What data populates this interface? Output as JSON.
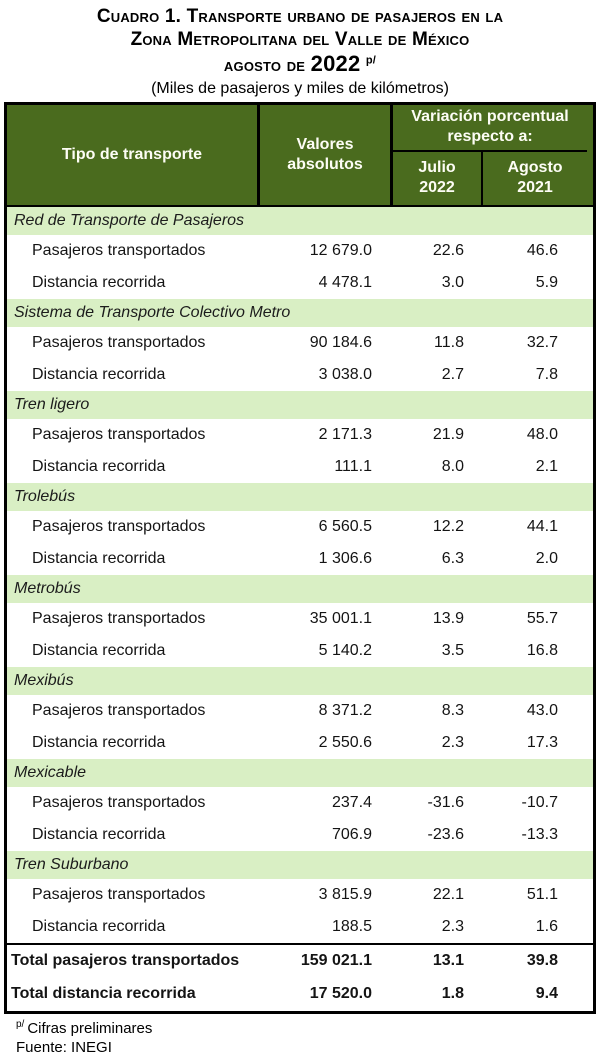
{
  "title": {
    "line1": "Cuadro 1. Transporte urbano de pasajeros en la",
    "line2": "Zona Metropolitana del Valle de México",
    "line3_prefix": "agosto de",
    "year": "2022",
    "footnote_mark": "p/",
    "subtitle": "(Miles de pasajeros y miles de kilómetros)"
  },
  "table": {
    "headers": {
      "col_type": "Tipo de transporte",
      "col_values": "Valores absolutos",
      "col_variation_group": "Variación porcentual respecto a:",
      "col_jul": "Julio\n2022",
      "col_aug": "Agosto\n2021"
    },
    "row_labels": {
      "passengers": "Pasajeros transportados",
      "distance": "Distancia recorrida"
    },
    "sections": [
      {
        "name": "Red de Transporte de Pasajeros",
        "passengers": {
          "abs": "12 679.0",
          "jul": "22.6",
          "aug": "46.6"
        },
        "distance": {
          "abs": "4 478.1",
          "jul": "3.0",
          "aug": "5.9"
        }
      },
      {
        "name": "Sistema de Transporte Colectivo Metro",
        "passengers": {
          "abs": "90 184.6",
          "jul": "11.8",
          "aug": "32.7"
        },
        "distance": {
          "abs": "3 038.0",
          "jul": "2.7",
          "aug": "7.8"
        }
      },
      {
        "name": "Tren ligero",
        "passengers": {
          "abs": "2 171.3",
          "jul": "21.9",
          "aug": "48.0"
        },
        "distance": {
          "abs": "111.1",
          "jul": "8.0",
          "aug": "2.1"
        }
      },
      {
        "name": "Trolebús",
        "passengers": {
          "abs": "6 560.5",
          "jul": "12.2",
          "aug": "44.1"
        },
        "distance": {
          "abs": "1 306.6",
          "jul": "6.3",
          "aug": "2.0"
        }
      },
      {
        "name": "Metrobús",
        "passengers": {
          "abs": "35 001.1",
          "jul": "13.9",
          "aug": "55.7"
        },
        "distance": {
          "abs": "5 140.2",
          "jul": "3.5",
          "aug": "16.8"
        }
      },
      {
        "name": "Mexibús",
        "passengers": {
          "abs": "8 371.2",
          "jul": "8.3",
          "aug": "43.0"
        },
        "distance": {
          "abs": "2 550.6",
          "jul": "2.3",
          "aug": "17.3"
        }
      },
      {
        "name": "Mexicable",
        "passengers": {
          "abs": "237.4",
          "jul": "-31.6",
          "aug": "-10.7"
        },
        "distance": {
          "abs": "706.9",
          "jul": "-23.6",
          "aug": "-13.3"
        }
      },
      {
        "name": "Tren Suburbano",
        "passengers": {
          "abs": "3 815.9",
          "jul": "22.1",
          "aug": "51.1"
        },
        "distance": {
          "abs": "188.5",
          "jul": "2.3",
          "aug": "1.6"
        }
      }
    ],
    "totals": [
      {
        "label": "Total pasajeros transportados",
        "abs": "159 021.1",
        "jul": "13.1",
        "aug": "39.8"
      },
      {
        "label": "Total distancia recorrida",
        "abs": "17 520.0",
        "jul": "1.8",
        "aug": "9.4"
      }
    ]
  },
  "footer": {
    "note_mark": "p/",
    "note_text": "Cifras preliminares",
    "source": "Fuente: INEGI"
  },
  "colors": {
    "header_green": "#4a6b1e",
    "band_green": "#d9efc4",
    "border_black": "#000000",
    "header_text": "#fdfdf5"
  },
  "chart_data": {
    "type": "table",
    "title": "Cuadro 1. Transporte urbano de pasajeros en la Zona Metropolitana del Valle de México, agosto de 2022 (preliminar)",
    "units": "Miles de pasajeros y miles de kilómetros",
    "columns": [
      "Tipo de transporte",
      "Valores absolutos",
      "Variación % respecto a Julio 2022",
      "Variación % respecto a Agosto 2021"
    ],
    "rows": [
      [
        "Red de Transporte de Pasajeros - Pasajeros transportados",
        12679.0,
        22.6,
        46.6
      ],
      [
        "Red de Transporte de Pasajeros - Distancia recorrida",
        4478.1,
        3.0,
        5.9
      ],
      [
        "Sistema de Transporte Colectivo Metro - Pasajeros transportados",
        90184.6,
        11.8,
        32.7
      ],
      [
        "Sistema de Transporte Colectivo Metro - Distancia recorrida",
        3038.0,
        2.7,
        7.8
      ],
      [
        "Tren ligero - Pasajeros transportados",
        2171.3,
        21.9,
        48.0
      ],
      [
        "Tren ligero - Distancia recorrida",
        111.1,
        8.0,
        2.1
      ],
      [
        "Trolebús - Pasajeros transportados",
        6560.5,
        12.2,
        44.1
      ],
      [
        "Trolebús - Distancia recorrida",
        1306.6,
        6.3,
        2.0
      ],
      [
        "Metrobús - Pasajeros transportados",
        35001.1,
        13.9,
        55.7
      ],
      [
        "Metrobús - Distancia recorrida",
        5140.2,
        3.5,
        16.8
      ],
      [
        "Mexibús - Pasajeros transportados",
        8371.2,
        8.3,
        43.0
      ],
      [
        "Mexibús - Distancia recorrida",
        2550.6,
        2.3,
        17.3
      ],
      [
        "Mexicable - Pasajeros transportados",
        237.4,
        -31.6,
        -10.7
      ],
      [
        "Mexicable - Distancia recorrida",
        706.9,
        -23.6,
        -13.3
      ],
      [
        "Tren Suburbano - Pasajeros transportados",
        3815.9,
        22.1,
        51.1
      ],
      [
        "Tren Suburbano - Distancia recorrida",
        188.5,
        2.3,
        1.6
      ],
      [
        "Total pasajeros transportados",
        159021.1,
        13.1,
        39.8
      ],
      [
        "Total distancia recorrida",
        17520.0,
        1.8,
        9.4
      ]
    ]
  }
}
